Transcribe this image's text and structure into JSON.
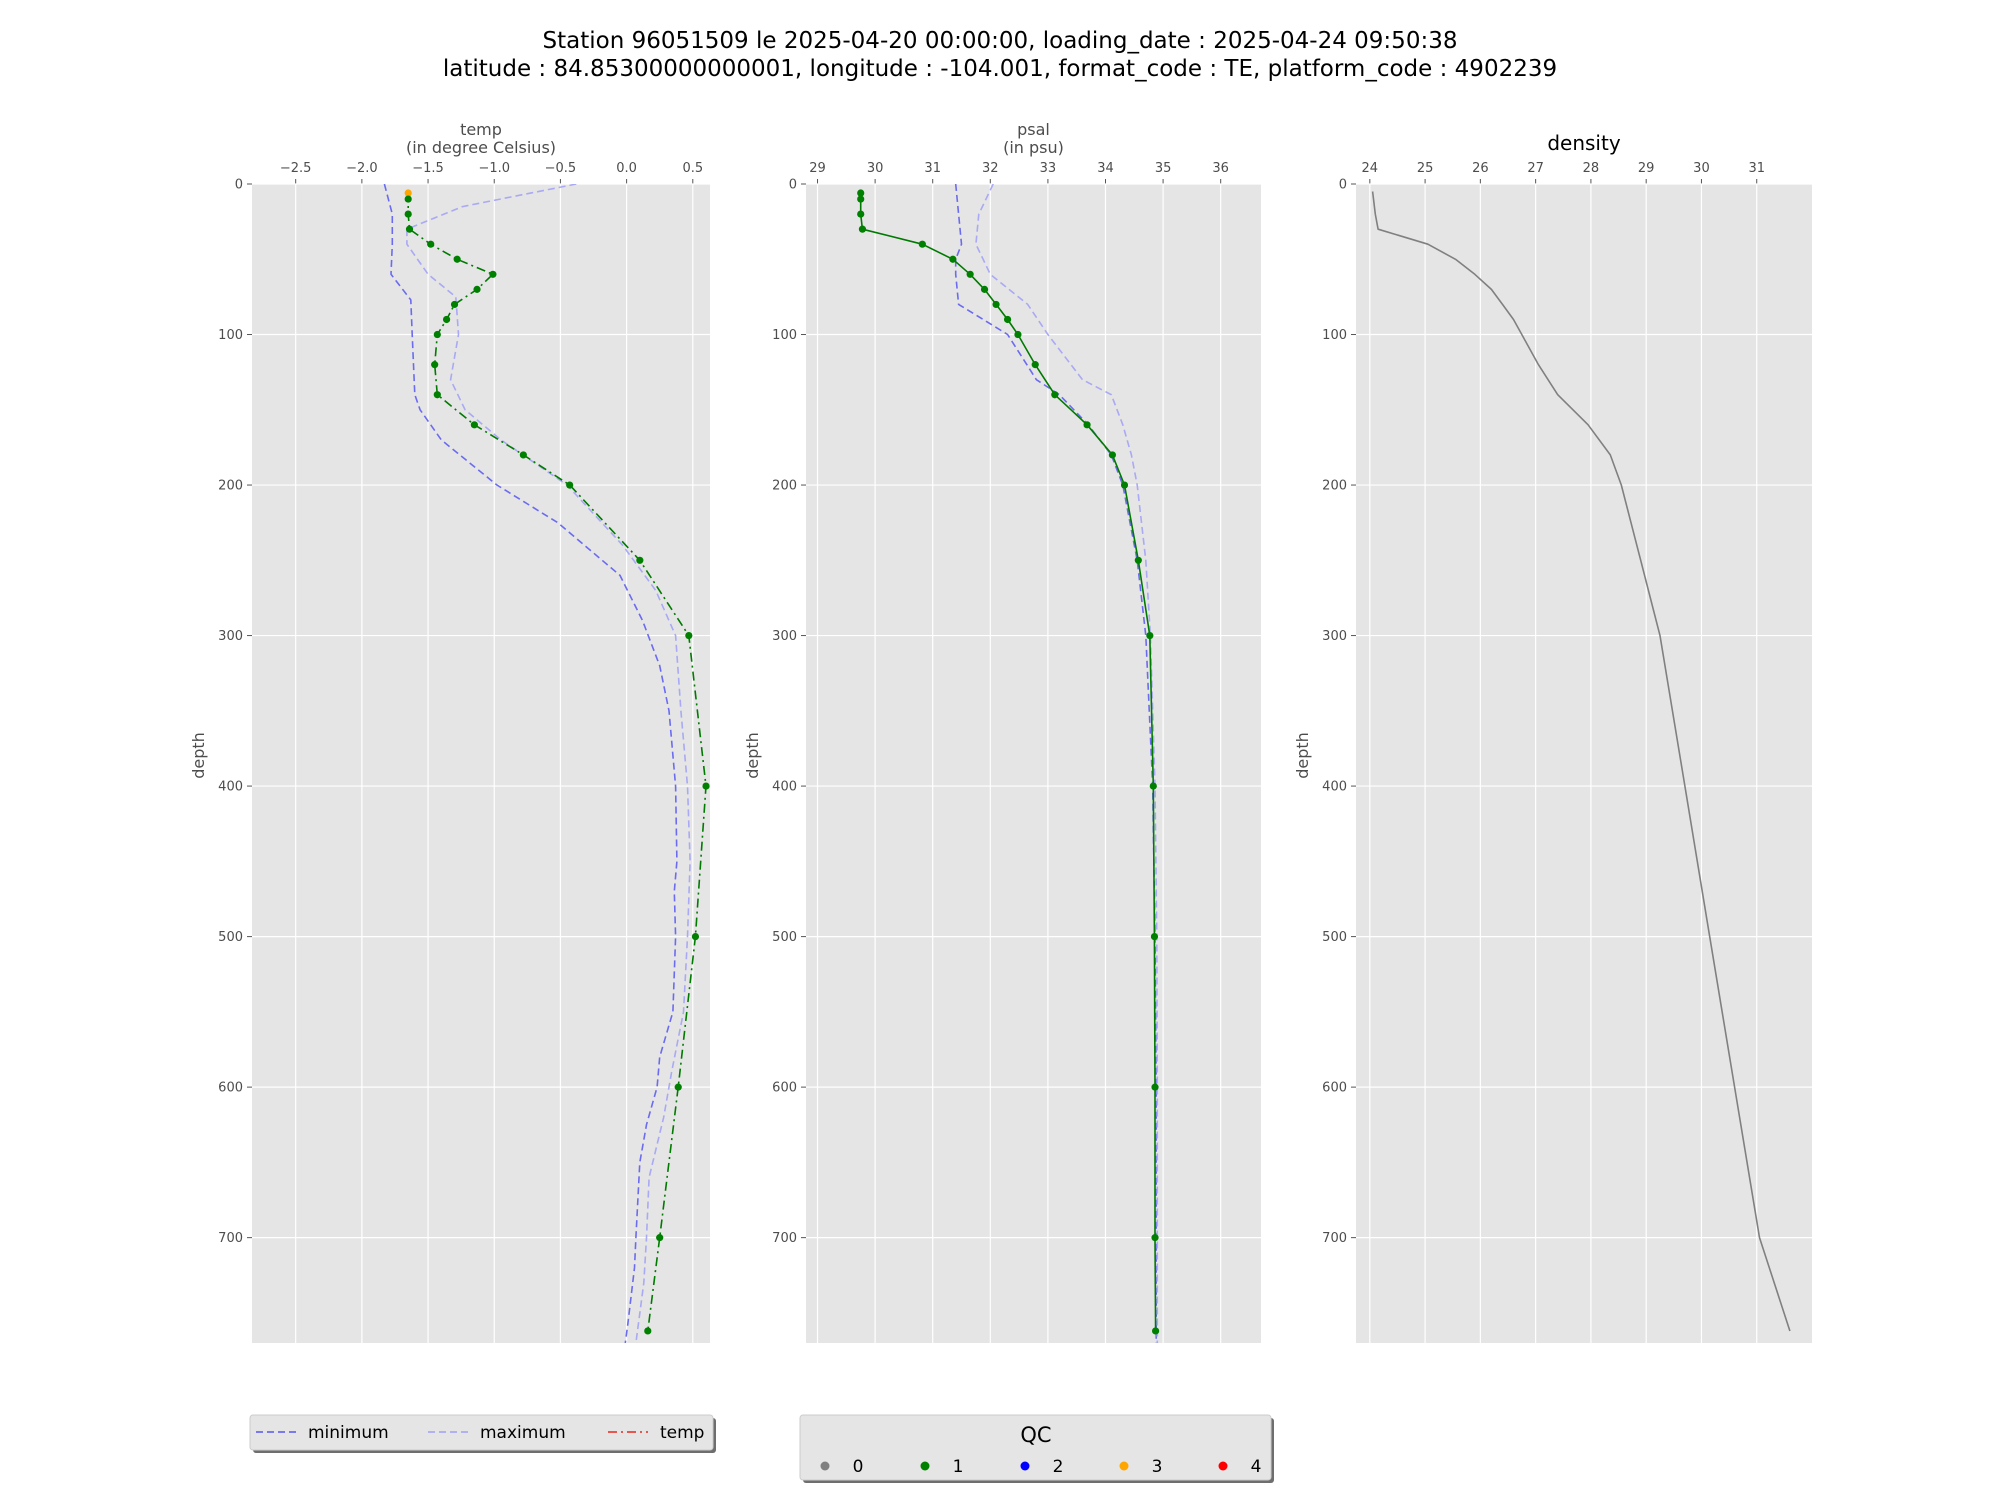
{
  "figure": {
    "title_line1": "Station 96051509 le 2025-04-20 00:00:00, loading_date : 2025-04-24 09:50:38",
    "title_line2": "latitude : 84.85300000000001, longitude : -104.001, format_code : TE, platform_code : 4902239"
  },
  "colors": {
    "axes_bg": "#e5e5e5",
    "grid": "#ffffff",
    "minimum": "#6b6bf0",
    "maximum": "#a9a9f5",
    "temp_line": "#007a00",
    "qc0": "#808080",
    "qc1": "#008000",
    "qc2": "#0000ff",
    "qc3": "#ffa500",
    "qc4": "#ff0000",
    "density": "#808080",
    "temp_legend": "#e8413a"
  },
  "chart_data": [
    {
      "type": "line",
      "name": "temp",
      "xlabel": "temp",
      "xlabel_unit": "(in degree Celsius)",
      "ylabel": "depth",
      "xlim": [
        -2.83,
        0.63
      ],
      "ylim": [
        770,
        0
      ],
      "xticks": [
        -2.5,
        -2.0,
        -1.5,
        -1.0,
        -0.5,
        0.0,
        0.5
      ],
      "xtick_labels": [
        "−2.5",
        "−2.0",
        "−1.5",
        "−1.0",
        "−0.5",
        "0.0",
        "0.5"
      ],
      "yticks": [
        0,
        100,
        200,
        300,
        400,
        500,
        600,
        700
      ],
      "ytick_labels": [
        "0",
        "100",
        "200",
        "300",
        "400",
        "500",
        "600",
        "700"
      ],
      "grid": true,
      "series": [
        {
          "name": "minimum",
          "points": [
            [
              -1.83,
              0
            ],
            [
              -1.77,
              20
            ],
            [
              -1.77,
              40
            ],
            [
              -1.78,
              60
            ],
            [
              -1.63,
              77
            ],
            [
              -1.62,
              100
            ],
            [
              -1.6,
              140
            ],
            [
              -1.56,
              150
            ],
            [
              -1.4,
              170
            ],
            [
              -0.98,
              200
            ],
            [
              -0.52,
              225
            ],
            [
              -0.05,
              260
            ],
            [
              0.12,
              290
            ],
            [
              0.25,
              320
            ],
            [
              0.32,
              350
            ],
            [
              0.37,
              400
            ],
            [
              0.38,
              450
            ],
            [
              0.36,
              470
            ],
            [
              0.37,
              500
            ],
            [
              0.35,
              550
            ],
            [
              0.25,
              580
            ],
            [
              0.23,
              600
            ],
            [
              0.15,
              625
            ],
            [
              0.1,
              650
            ],
            [
              0.07,
              700
            ],
            [
              0.06,
              720
            ],
            [
              0.01,
              757
            ],
            [
              -0.01,
              770
            ]
          ]
        },
        {
          "name": "maximum",
          "points": [
            [
              -0.38,
              0
            ],
            [
              -1.24,
              15
            ],
            [
              -1.66,
              30
            ],
            [
              -1.66,
              40
            ],
            [
              -1.5,
              60
            ],
            [
              -1.29,
              75
            ],
            [
              -1.27,
              100
            ],
            [
              -1.33,
              130
            ],
            [
              -1.22,
              150
            ],
            [
              -0.95,
              170
            ],
            [
              -0.45,
              200
            ],
            [
              -0.03,
              240
            ],
            [
              0.22,
              270
            ],
            [
              0.37,
              300
            ],
            [
              0.41,
              350
            ],
            [
              0.46,
              400
            ],
            [
              0.48,
              450
            ],
            [
              0.46,
              500
            ],
            [
              0.43,
              550
            ],
            [
              0.34,
              590
            ],
            [
              0.28,
              620
            ],
            [
              0.17,
              660
            ],
            [
              0.15,
              700
            ],
            [
              0.13,
              730
            ],
            [
              0.07,
              770
            ]
          ]
        },
        {
          "name": "temp",
          "points": [
            [
              -1.65,
              6
            ],
            [
              -1.65,
              10
            ],
            [
              -1.65,
              20
            ],
            [
              -1.64,
              30
            ],
            [
              -1.48,
              40
            ],
            [
              -1.28,
              50
            ],
            [
              -1.01,
              60
            ],
            [
              -1.13,
              70
            ],
            [
              -1.3,
              80
            ],
            [
              -1.36,
              90
            ],
            [
              -1.43,
              100
            ],
            [
              -1.45,
              120
            ],
            [
              -1.43,
              140
            ],
            [
              -1.15,
              160
            ],
            [
              -0.78,
              180
            ],
            [
              -0.43,
              200
            ],
            [
              0.1,
              250
            ],
            [
              0.47,
              300
            ],
            [
              0.6,
              400
            ],
            [
              0.52,
              500
            ],
            [
              0.39,
              600
            ],
            [
              0.25,
              700
            ],
            [
              0.16,
              762
            ]
          ],
          "qc": [
            3,
            1,
            1,
            1,
            1,
            1,
            1,
            1,
            1,
            1,
            1,
            1,
            1,
            1,
            1,
            1,
            1,
            1,
            1,
            1,
            1,
            1,
            1
          ]
        }
      ]
    },
    {
      "type": "line",
      "name": "psal",
      "xlabel": "psal",
      "xlabel_unit": "(in psu)",
      "ylabel": "depth",
      "xlim": [
        28.8,
        36.7
      ],
      "ylim": [
        770,
        0
      ],
      "xticks": [
        29,
        30,
        31,
        32,
        33,
        34,
        35,
        36
      ],
      "xtick_labels": [
        "29",
        "30",
        "31",
        "32",
        "33",
        "34",
        "35",
        "36"
      ],
      "yticks": [
        0,
        100,
        200,
        300,
        400,
        500,
        600,
        700
      ],
      "ytick_labels": [
        "0",
        "100",
        "200",
        "300",
        "400",
        "500",
        "600",
        "700"
      ],
      "grid": true,
      "series": [
        {
          "name": "minimum",
          "points": [
            [
              31.4,
              0
            ],
            [
              31.45,
              20
            ],
            [
              31.5,
              40
            ],
            [
              31.4,
              50
            ],
            [
              31.4,
              60
            ],
            [
              31.45,
              80
            ],
            [
              32.3,
              100
            ],
            [
              32.8,
              130
            ],
            [
              33.2,
              140
            ],
            [
              33.7,
              160
            ],
            [
              34.1,
              180
            ],
            [
              34.3,
              200
            ],
            [
              34.55,
              250
            ],
            [
              34.7,
              300
            ],
            [
              34.82,
              400
            ],
            [
              34.86,
              500
            ],
            [
              34.88,
              600
            ],
            [
              34.88,
              700
            ],
            [
              34.88,
              770
            ]
          ]
        },
        {
          "name": "maximum",
          "points": [
            [
              32.05,
              0
            ],
            [
              31.8,
              20
            ],
            [
              31.75,
              40
            ],
            [
              32.0,
              60
            ],
            [
              32.65,
              80
            ],
            [
              33.0,
              100
            ],
            [
              33.6,
              130
            ],
            [
              34.1,
              140
            ],
            [
              34.3,
              160
            ],
            [
              34.45,
              180
            ],
            [
              34.55,
              200
            ],
            [
              34.7,
              250
            ],
            [
              34.78,
              300
            ],
            [
              34.86,
              400
            ],
            [
              34.89,
              500
            ],
            [
              34.9,
              600
            ],
            [
              34.9,
              700
            ],
            [
              34.9,
              770
            ]
          ]
        },
        {
          "name": "psal",
          "points": [
            [
              29.75,
              6
            ],
            [
              29.75,
              10
            ],
            [
              29.75,
              20
            ],
            [
              29.78,
              30
            ],
            [
              30.82,
              40
            ],
            [
              31.35,
              50
            ],
            [
              31.65,
              60
            ],
            [
              31.9,
              70
            ],
            [
              32.1,
              80
            ],
            [
              32.3,
              90
            ],
            [
              32.48,
              100
            ],
            [
              32.78,
              120
            ],
            [
              33.12,
              140
            ],
            [
              33.68,
              160
            ],
            [
              34.12,
              180
            ],
            [
              34.33,
              200
            ],
            [
              34.57,
              250
            ],
            [
              34.77,
              300
            ],
            [
              34.83,
              400
            ],
            [
              34.85,
              500
            ],
            [
              34.86,
              600
            ],
            [
              34.86,
              700
            ],
            [
              34.87,
              762
            ]
          ],
          "qc": [
            1,
            1,
            1,
            1,
            1,
            1,
            1,
            1,
            1,
            1,
            1,
            1,
            1,
            1,
            1,
            1,
            1,
            1,
            1,
            1,
            1,
            1,
            1
          ]
        }
      ]
    },
    {
      "type": "line",
      "name": "density",
      "title": "density",
      "ylabel": "depth",
      "xlim": [
        23.75,
        32.0
      ],
      "ylim": [
        770,
        0
      ],
      "xticks": [
        24,
        25,
        26,
        27,
        28,
        29,
        30,
        31
      ],
      "xtick_labels": [
        "24",
        "25",
        "26",
        "27",
        "28",
        "29",
        "30",
        "31"
      ],
      "yticks": [
        0,
        100,
        200,
        300,
        400,
        500,
        600,
        700
      ],
      "ytick_labels": [
        "0",
        "100",
        "200",
        "300",
        "400",
        "500",
        "600",
        "700"
      ],
      "grid": true,
      "series": [
        {
          "name": "density",
          "points": [
            [
              24.05,
              5
            ],
            [
              24.1,
              20
            ],
            [
              24.15,
              30
            ],
            [
              24.6,
              35
            ],
            [
              25.05,
              40
            ],
            [
              25.55,
              50
            ],
            [
              25.9,
              60
            ],
            [
              26.2,
              70
            ],
            [
              26.4,
              80
            ],
            [
              26.6,
              90
            ],
            [
              26.75,
              100
            ],
            [
              27.05,
              120
            ],
            [
              27.4,
              140
            ],
            [
              27.95,
              160
            ],
            [
              28.35,
              180
            ],
            [
              28.55,
              200
            ],
            [
              28.9,
              250
            ],
            [
              29.25,
              300
            ],
            [
              29.7,
              400
            ],
            [
              30.15,
              500
            ],
            [
              30.6,
              600
            ],
            [
              31.05,
              700
            ],
            [
              31.6,
              762
            ]
          ]
        }
      ]
    }
  ],
  "legend_main": {
    "items": [
      {
        "label": "minimum",
        "color_key": "minimum",
        "style": "dashed"
      },
      {
        "label": "maximum",
        "color_key": "maximum",
        "style": "dashed"
      },
      {
        "label": "temp",
        "color_key": "temp_legend",
        "style": "dashdot"
      }
    ]
  },
  "legend_qc": {
    "title": "QC",
    "items": [
      {
        "label": "0",
        "color_key": "qc0"
      },
      {
        "label": "1",
        "color_key": "qc1"
      },
      {
        "label": "2",
        "color_key": "qc2"
      },
      {
        "label": "3",
        "color_key": "qc3"
      },
      {
        "label": "4",
        "color_key": "qc4"
      }
    ]
  }
}
